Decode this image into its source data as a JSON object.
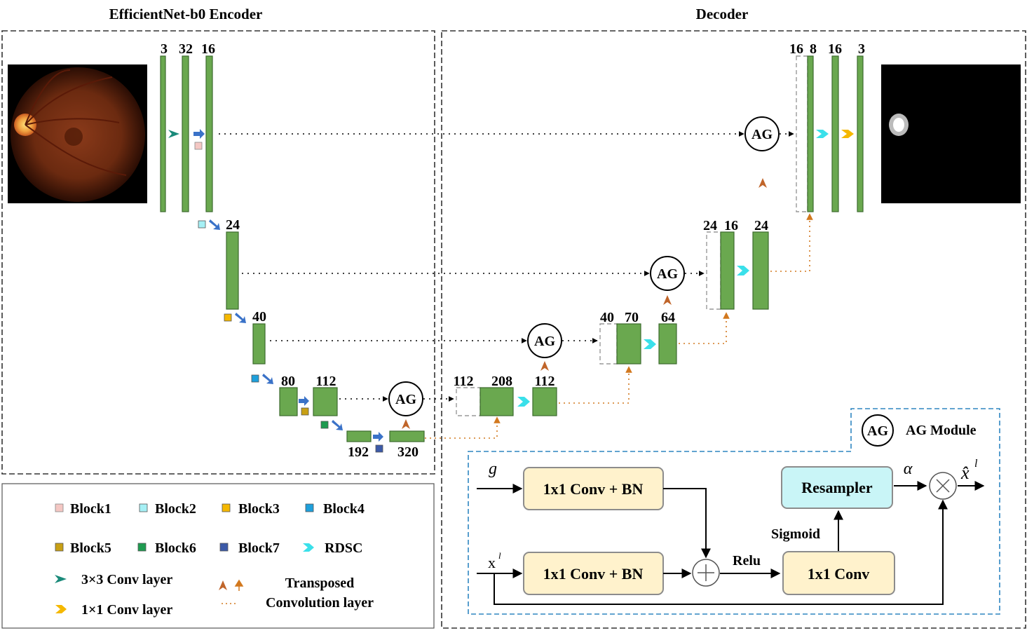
{
  "titles": {
    "encoder": "EfficientNet-b0 Encoder",
    "decoder": "Decoder"
  },
  "encoder_channels": {
    "c3": "3",
    "c32": "32",
    "c16": "16",
    "c24": "24",
    "c40": "40",
    "c80": "80",
    "c112": "112",
    "c192": "192",
    "c320": "320"
  },
  "decoder_channels": {
    "l4a": "112",
    "l4b": "208",
    "l4c": "112",
    "l3a": "40",
    "l3b": "70",
    "l3c": "64",
    "l2a": "24",
    "l2b": "16",
    "l2c": "24",
    "l1a": "16",
    "l1b": "8",
    "l1c": "16",
    "l1d": "3"
  },
  "ag_label": "AG",
  "legend": {
    "block1": "Block1",
    "block2": "Block2",
    "block3": "Block3",
    "block4": "Block4",
    "block5": "Block5",
    "block6": "Block6",
    "block7": "Block7",
    "rdsc": "RDSC",
    "conv3": "3×3 Conv layer",
    "conv1": "1×1 Conv layer",
    "tconv_line1": "Transposed",
    "tconv_line2": "Convolution layer"
  },
  "ag_module": {
    "title": "AG Module",
    "g": "g",
    "x": "x",
    "x_sup": "l",
    "conv_bn_top": "1x1 Conv + BN",
    "conv_bn_bottom": "1x1 Conv + BN",
    "relu": "Relu",
    "conv": "1x1 Conv",
    "sigmoid": "Sigmoid",
    "resampler": "Resampler",
    "alpha": "α",
    "xhat": "x̂",
    "xhat_sup": "l"
  },
  "colors": {
    "block": "#6aa84f",
    "block1": "#f4c7c3",
    "block2": "#a6f0f5",
    "block3": "#f5b800",
    "block4": "#1ea0dc",
    "block5": "#c8a014",
    "block6": "#1e9b50",
    "block7": "#3c5aa8",
    "rdsc": "#3ae0ea",
    "conv3": "#1a8a7a",
    "conv1": "#f5b800",
    "tconv": "#c0652a",
    "down_arrow": "#3a72c8"
  }
}
